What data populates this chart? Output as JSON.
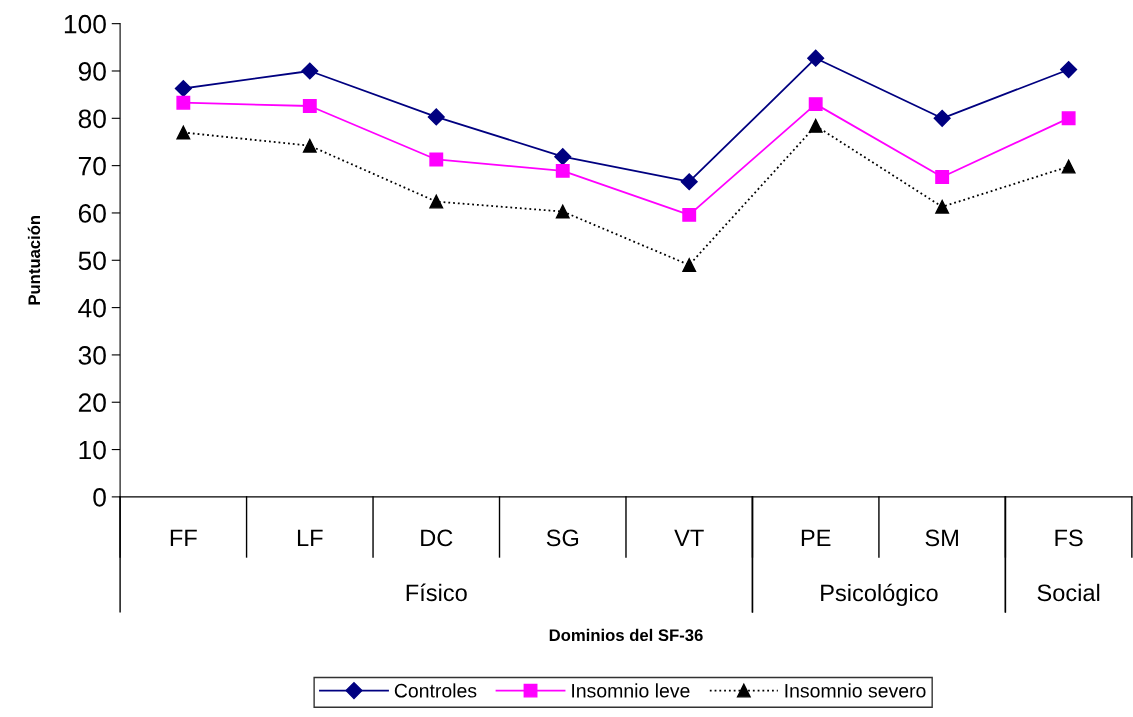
{
  "chart_data": {
    "type": "line",
    "xlabel": "Dominios del SF-36",
    "ylabel": "Puntuación",
    "categories": [
      "FF",
      "LF",
      "DC",
      "SG",
      "VT",
      "PE",
      "SM",
      "FS"
    ],
    "annotations": [
      "Físico",
      "Psicológico",
      "Social"
    ],
    "ylim": [
      0,
      100
    ],
    "yticks": [
      0,
      10,
      20,
      30,
      40,
      50,
      60,
      70,
      80,
      90,
      100
    ],
    "grid": false,
    "legend": "bottom",
    "series": [
      {
        "name": "Controles",
        "color": "#000080",
        "marker": "diamond",
        "line_style": "solid",
        "values": [
          86.3,
          90,
          80.3,
          71.9,
          66.6,
          92.7,
          80,
          90.3
        ]
      },
      {
        "name": "Insomnio leve",
        "color": "#ff00ff",
        "marker": "square",
        "line_style": "solid",
        "values": [
          83.3,
          82.6,
          71.3,
          68.9,
          59.6,
          83,
          67.6,
          80
        ]
      },
      {
        "name": "Insomnio severo",
        "color": "#000000",
        "marker": "triangle",
        "line_style": "dotted",
        "values": [
          77,
          74.2,
          62.4,
          60.3,
          49,
          78.4,
          61.3,
          69.8
        ]
      }
    ]
  }
}
